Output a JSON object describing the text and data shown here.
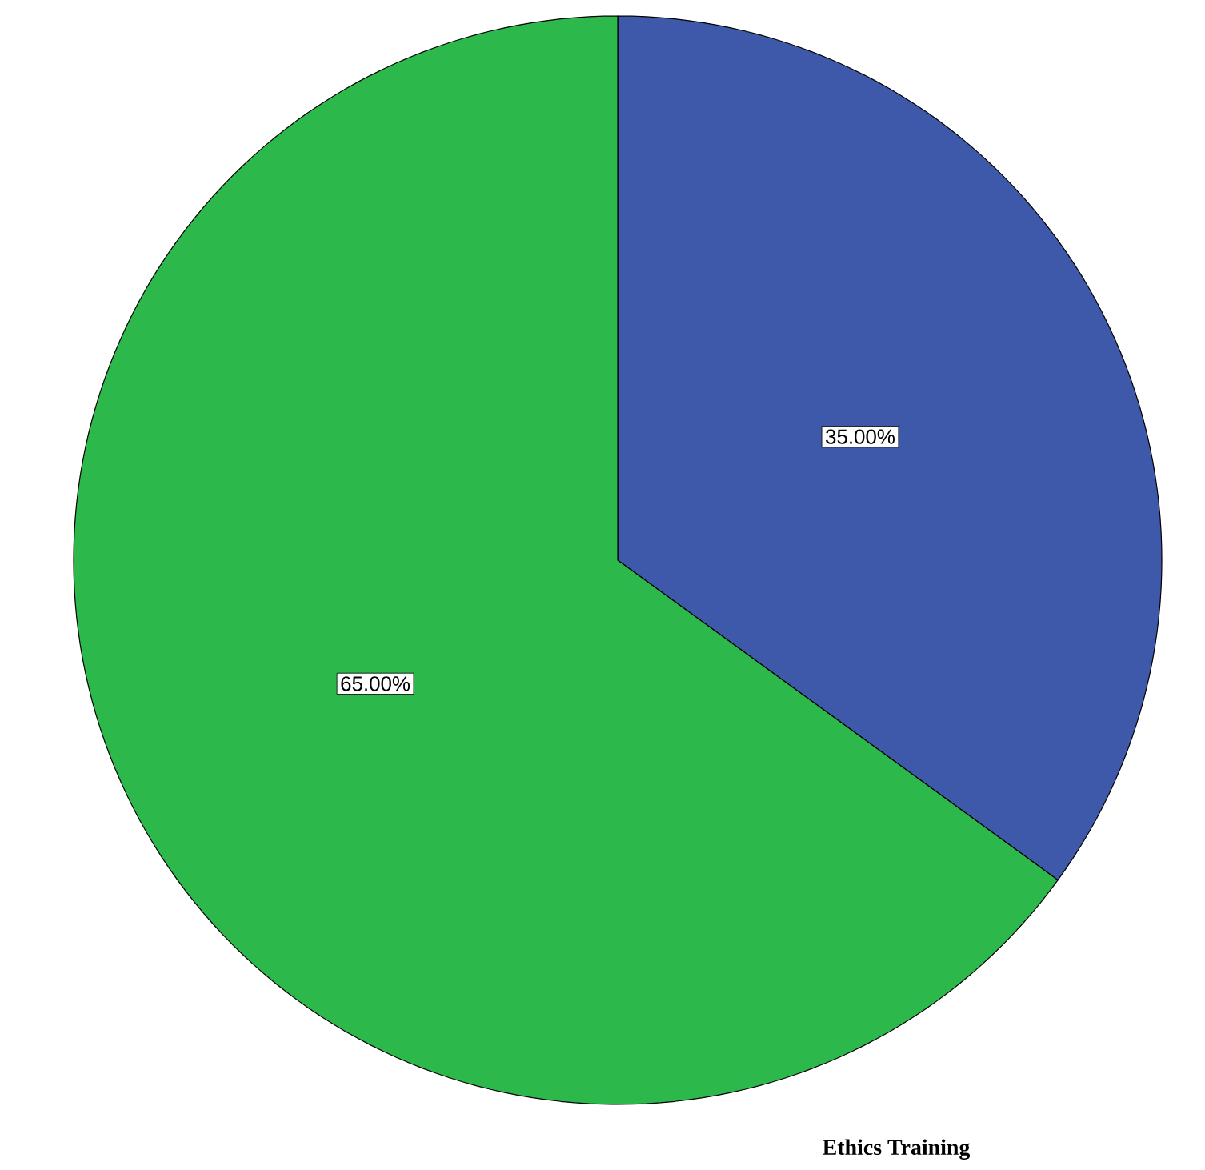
{
  "chart_data": {
    "type": "pie",
    "title": "Ethics Training",
    "categories": [
      null,
      null
    ],
    "values": [
      35,
      65
    ],
    "colors": [
      "#3f59aa",
      "#2db84b"
    ],
    "value_labels": [
      "35.00%",
      "65.00%"
    ]
  }
}
